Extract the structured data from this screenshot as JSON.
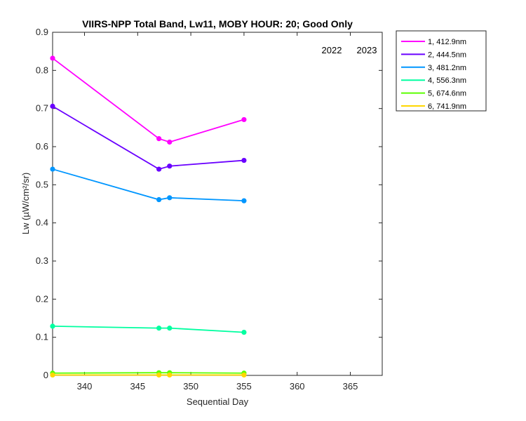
{
  "chart_data": {
    "type": "line",
    "title": "VIIRS-NPP Total Band,  Lw11, MOBY HOUR: 20;  Good Only",
    "xlabel": "Sequential Day",
    "ylabel": "Lw (µW/cm²/sr)",
    "xlim": [
      337,
      368
    ],
    "ylim": [
      0,
      0.9
    ],
    "xticks": [
      340,
      345,
      350,
      355,
      360,
      365
    ],
    "yticks": [
      0,
      0.1,
      0.2,
      0.3,
      0.4,
      0.5,
      0.6,
      0.7,
      0.8,
      0.9
    ],
    "xtick_labels": [
      "340",
      "345",
      "350",
      "355",
      "360",
      "365"
    ],
    "ytick_labels": [
      "0",
      "0.1",
      "0.2",
      "0.3",
      "0.4",
      "0.5",
      "0.6",
      "0.7",
      "0.8",
      "0.9"
    ],
    "grid": false,
    "legend_position": "outside-top-right",
    "annotations": [
      "2022",
      "2023"
    ],
    "x": [
      337,
      347,
      348,
      355
    ],
    "series": [
      {
        "name": "1, 412.9nm",
        "color": "#ff00ff",
        "values": [
          0.832,
          0.621,
          0.612,
          0.671
        ]
      },
      {
        "name": "2, 444.5nm",
        "color": "#6a00ff",
        "values": [
          0.706,
          0.541,
          0.549,
          0.564
        ]
      },
      {
        "name": "3, 481.2nm",
        "color": "#0096ff",
        "values": [
          0.541,
          0.461,
          0.466,
          0.458
        ]
      },
      {
        "name": "4, 556.3nm",
        "color": "#00ffa0",
        "values": [
          0.129,
          0.124,
          0.124,
          0.113
        ]
      },
      {
        "name": "5, 674.6nm",
        "color": "#5aff00",
        "values": [
          0.006,
          0.007,
          0.007,
          0.006
        ]
      },
      {
        "name": "6, 741.9nm",
        "color": "#ffd700",
        "values": [
          0.001,
          0.001,
          0.001,
          0.001
        ]
      }
    ]
  }
}
